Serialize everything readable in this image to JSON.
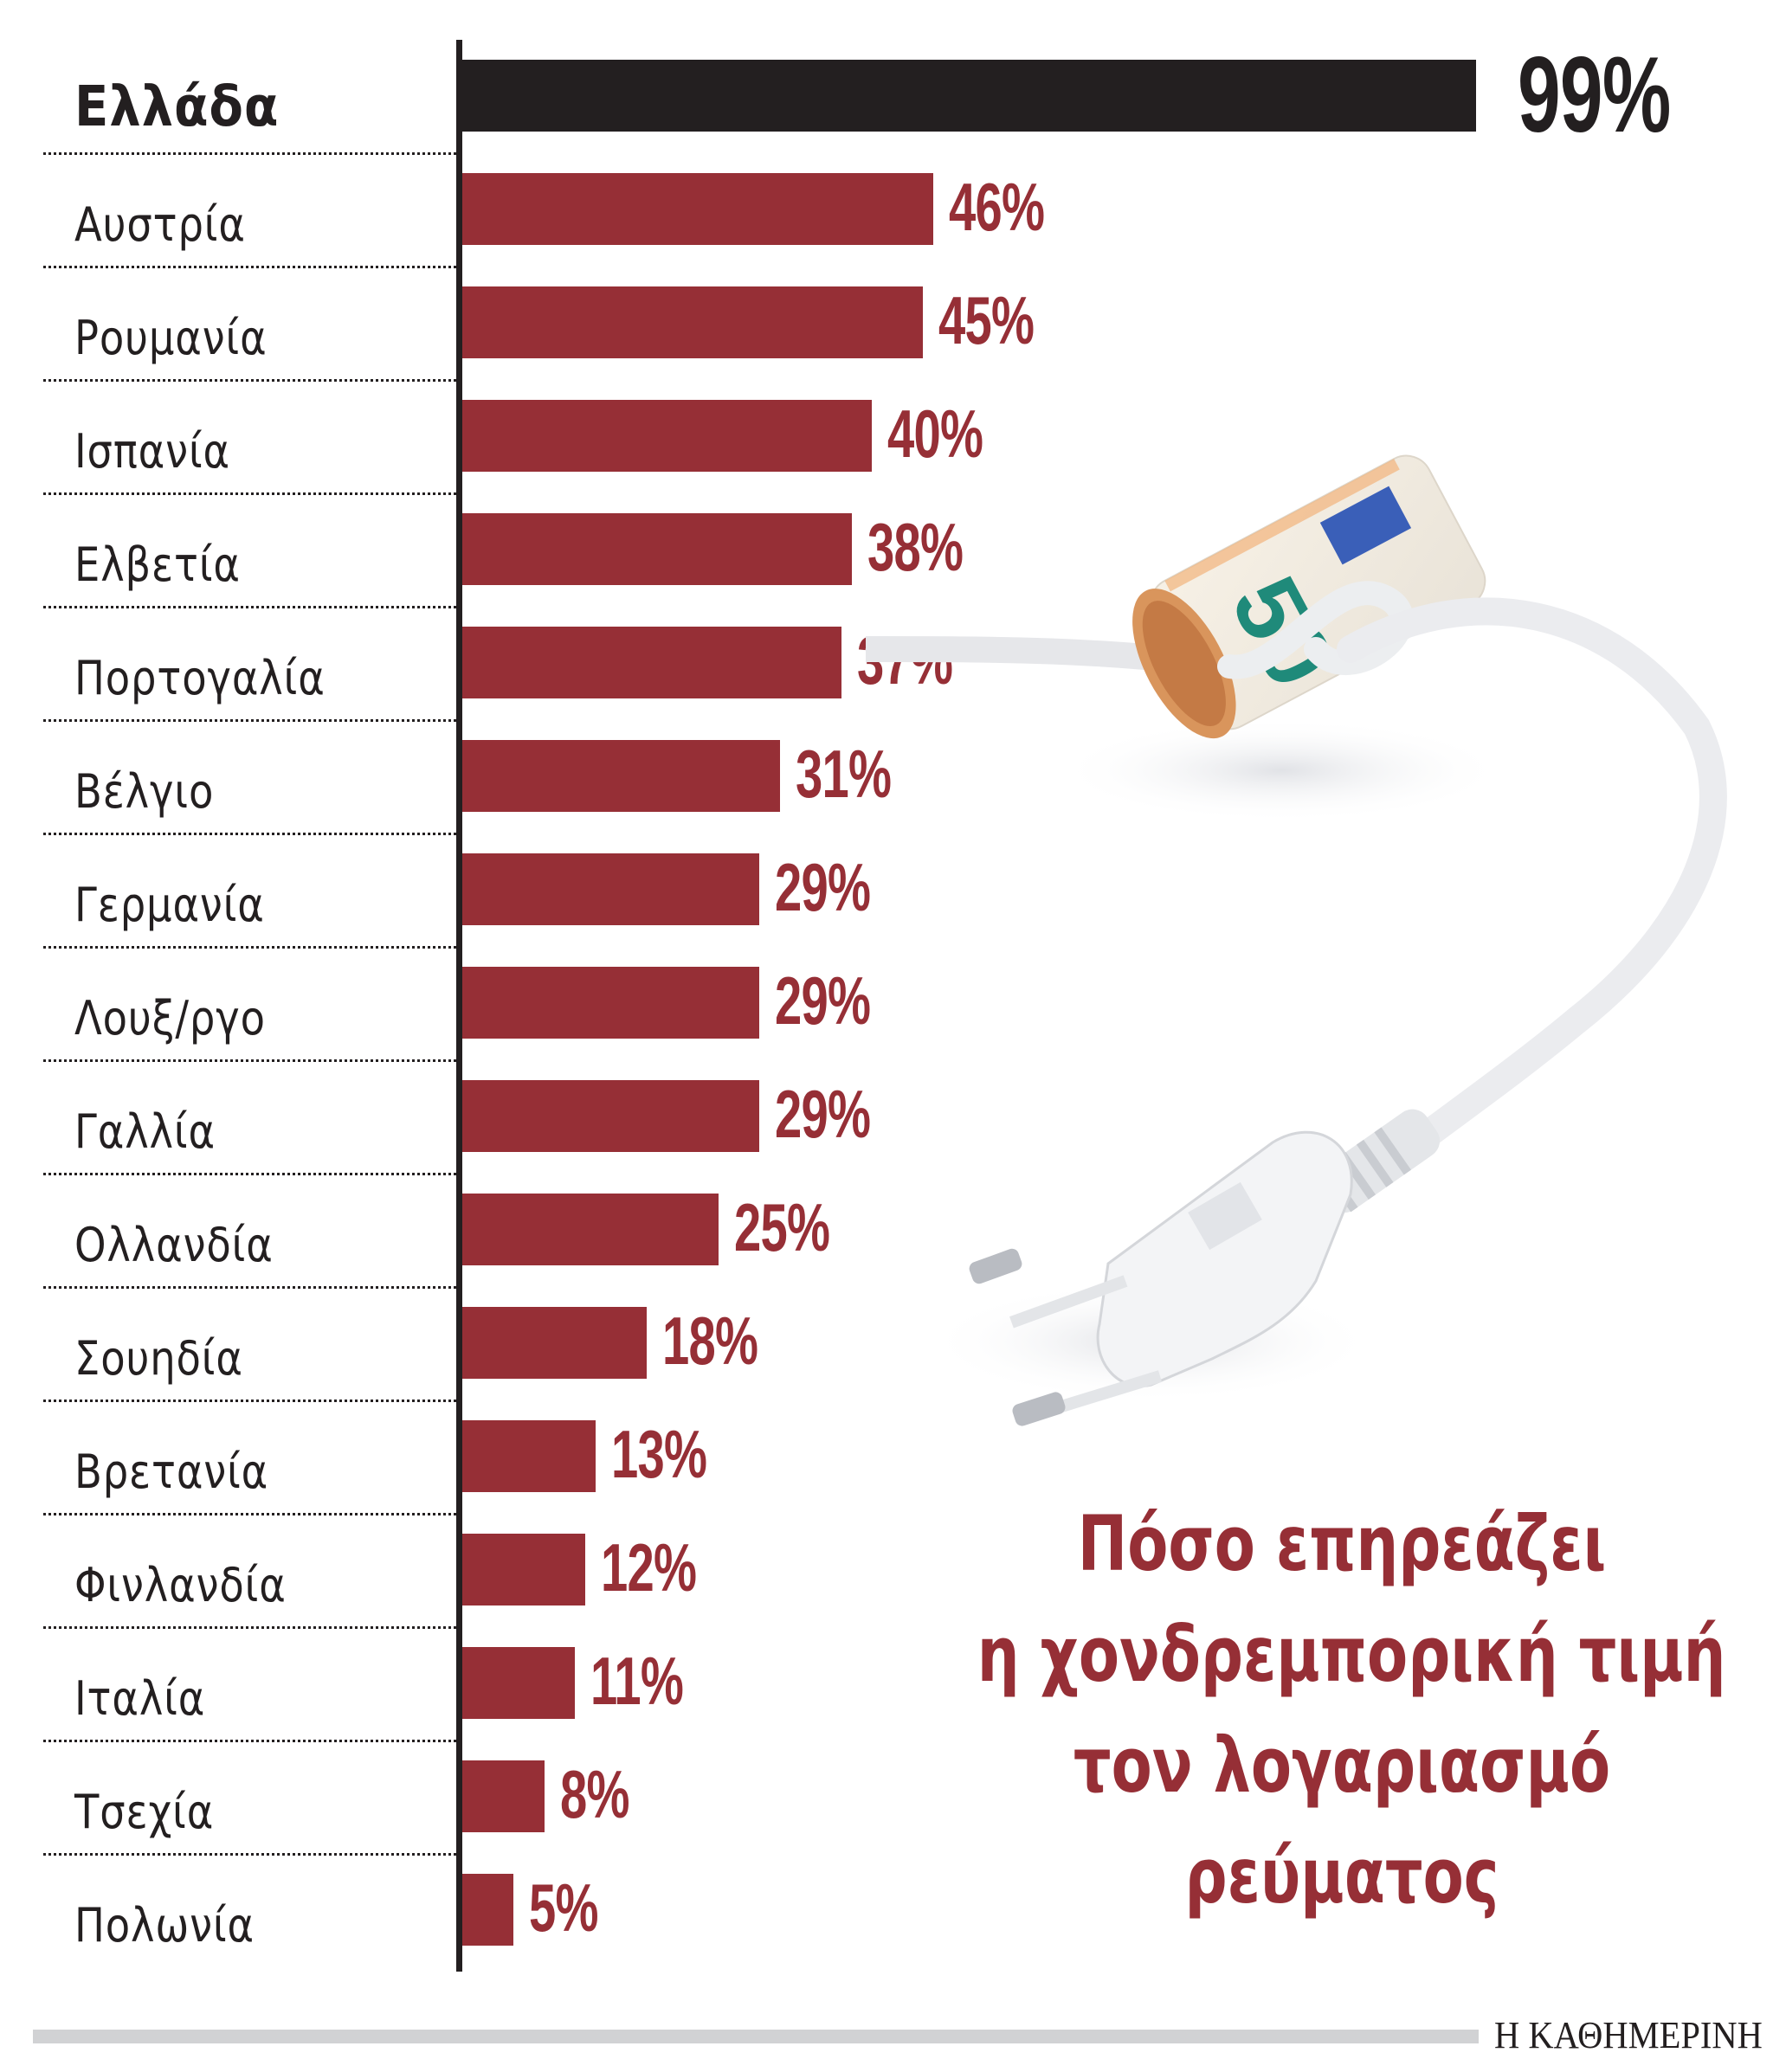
{
  "chart": {
    "title_lines": [
      "Πόσο επηρεάζει",
      "η χονδρεμπορική τιμή",
      "τον λογαριασμό",
      "ρεύματος"
    ],
    "rows": [
      {
        "label": "Ελλάδα",
        "value": 99,
        "value_label": "99%",
        "highlight": true
      },
      {
        "label": "Αυστρία",
        "value": 46,
        "value_label": "46%"
      },
      {
        "label": "Ρουμανία",
        "value": 45,
        "value_label": "45%"
      },
      {
        "label": "Ισπανία",
        "value": 40,
        "value_label": "40%"
      },
      {
        "label": "Ελβετία",
        "value": 38,
        "value_label": "38%"
      },
      {
        "label": "Πορτογαλία",
        "value": 37,
        "value_label": "37%"
      },
      {
        "label": "Βέλγιο",
        "value": 31,
        "value_label": "31%"
      },
      {
        "label": "Γερμανία",
        "value": 29,
        "value_label": "29%"
      },
      {
        "label": "Λουξ/ργο",
        "value": 29,
        "value_label": "29%"
      },
      {
        "label": "Γαλλία",
        "value": 29,
        "value_label": "29%"
      },
      {
        "label": "Ολλανδία",
        "value": 25,
        "value_label": "25%"
      },
      {
        "label": "Σουηδία",
        "value": 18,
        "value_label": "18%"
      },
      {
        "label": "Βρετανία",
        "value": 13,
        "value_label": "13%"
      },
      {
        "label": "Φινλανδία",
        "value": 12,
        "value_label": "12%"
      },
      {
        "label": "Ιταλία",
        "value": 11,
        "value_label": "11%"
      },
      {
        "label": "Τσεχία",
        "value": 8,
        "value_label": "8%"
      },
      {
        "label": "Πολωνία",
        "value": 5,
        "value_label": "5%"
      }
    ],
    "colors": {
      "highlight": "#231f20",
      "bar": "#962f36",
      "rule": "#d1d2d4"
    },
    "illustration": {
      "icon": "plug-with-rolled-50-euro-banknote",
      "banknote_label": "50"
    }
  },
  "footer": {
    "logo_text": "Η ΚΑΘΗΜΕΡΙΝΗ"
  },
  "chart_data": {
    "type": "bar",
    "orientation": "horizontal",
    "title": "Πόσο επηρεάζει η χονδρεμπορική τιμή τον λογαριασμό ρεύματος",
    "categories": [
      "Ελλάδα",
      "Αυστρία",
      "Ρουμανία",
      "Ισπανία",
      "Ελβετία",
      "Πορτογαλία",
      "Βέλγιο",
      "Γερμανία",
      "Λουξ/ργο",
      "Γαλλία",
      "Ολλανδία",
      "Σουηδία",
      "Βρετανία",
      "Φινλανδία",
      "Ιταλία",
      "Τσεχία",
      "Πολωνία"
    ],
    "values": [
      99,
      46,
      45,
      40,
      38,
      37,
      31,
      29,
      29,
      29,
      25,
      18,
      13,
      12,
      11,
      8,
      5
    ],
    "unit": "%",
    "xlabel": "",
    "ylabel": "",
    "xlim": [
      0,
      100
    ],
    "grid": false,
    "legend": null,
    "data_labels": true,
    "highlighted_category": "Ελλάδα"
  }
}
